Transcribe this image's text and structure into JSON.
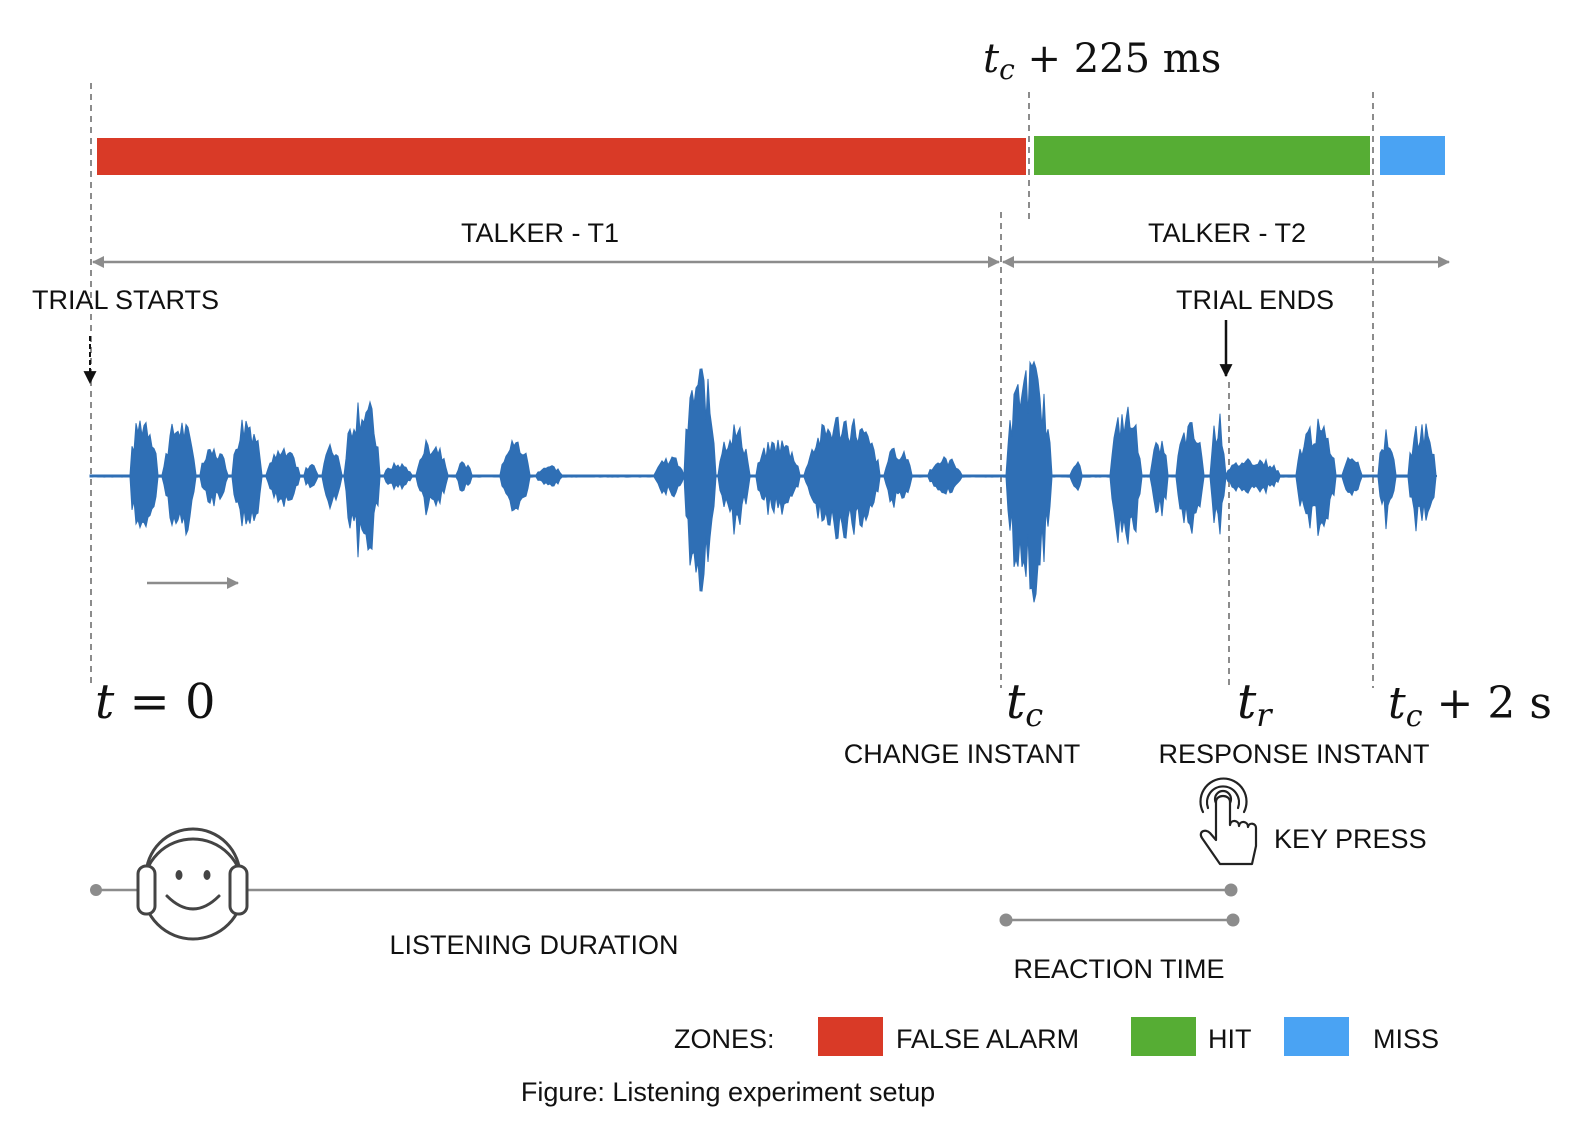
{
  "title": "Figure: Listening experiment setup",
  "colors": {
    "false_alarm": "#d93a27",
    "hit": "#56ad34",
    "miss": "#4aa3f3",
    "waveform": "#2f6fb5",
    "guide": "#8c8c8c"
  },
  "top_marker": {
    "var": "t",
    "sub": "c",
    "suffix": " + 225 ms"
  },
  "talkers": {
    "t1": "TALKER - T1",
    "t2": "TALKER - T2"
  },
  "events": {
    "trial_starts": "TRIAL STARTS",
    "trial_ends": "TRIAL ENDS"
  },
  "time_labels": {
    "t0": {
      "var": "t",
      "suffix": " = 0"
    },
    "tc": {
      "var": "t",
      "sub": "c"
    },
    "tr": {
      "var": "t",
      "sub": "r"
    },
    "tc2": {
      "var": "t",
      "sub": "c",
      "suffix": " + 2 s"
    }
  },
  "instants": {
    "change": "CHANGE INSTANT",
    "response": "RESPONSE INSTANT"
  },
  "key_press": "KEY PRESS",
  "listening_duration": "LISTENING DURATION",
  "reaction_time": "REACTION TIME",
  "legend": {
    "heading": "ZONES:",
    "items": [
      {
        "label": "FALSE ALARM",
        "color": "#d93a27"
      },
      {
        "label": "HIT",
        "color": "#56ad34"
      },
      {
        "label": "MISS",
        "color": "#4aa3f3"
      }
    ]
  },
  "icons": {
    "listener": "headphones-smiley-icon",
    "key_press": "finger-tap-icon"
  }
}
